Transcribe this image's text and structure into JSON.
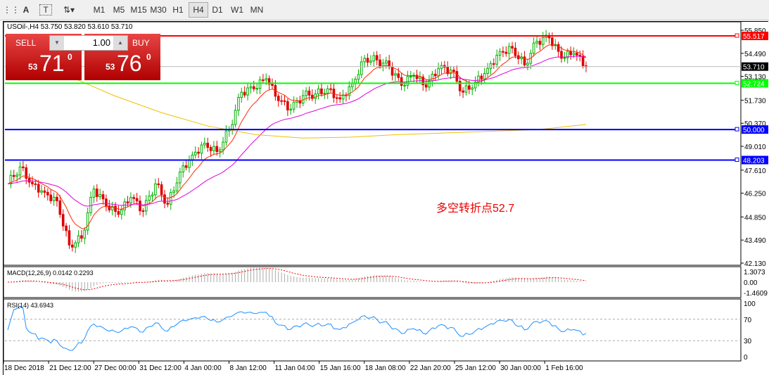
{
  "toolbar": {
    "timeframes": [
      "M1",
      "M5",
      "M15",
      "M30",
      "H1",
      "H4",
      "D1",
      "W1",
      "MN"
    ],
    "active": "H4",
    "icons": [
      "period-separator-icon",
      "text-icon",
      "text-label-icon",
      "arrows-icon"
    ]
  },
  "symbol_info": "USOil-,H4  53.750 53.820 53.610 53.710",
  "trade": {
    "sell": "SELL",
    "buy": "BUY",
    "volume": "1.00",
    "sell_big": "53",
    "sell_price": "71",
    "sell_sup": "0",
    "buy_big": "53",
    "buy_price": "76",
    "buy_sup": "0"
  },
  "annotation": "多空转折点52.7",
  "colors": {
    "up": "#00b000",
    "down": "#e00000",
    "ma_fast": "#ff2a00",
    "ma_mid": "#e000e0",
    "ma_slow": "#f0c000",
    "rsi": "#1e90ff"
  },
  "chart_data": {
    "type": "candlestick",
    "price_ticks": [
      "55.850",
      "54.490",
      "53.130",
      "51.730",
      "50.370",
      "49.010",
      "47.610",
      "46.250",
      "44.850",
      "43.490",
      "42.130"
    ],
    "ylim": [
      42.13,
      55.85
    ],
    "levels": [
      {
        "value": 55.517,
        "label": "55.517",
        "color": "#ff0000"
      },
      {
        "value": 52.724,
        "label": "52.724",
        "color": "#00ff00"
      },
      {
        "value": 50.0,
        "label": "50.000",
        "color": "#0000ff"
      },
      {
        "value": 48.203,
        "label": "48.203",
        "color": "#0000ff"
      }
    ],
    "current": {
      "value": 53.71,
      "label": "53.710"
    },
    "closes_approx": [
      46.8,
      47.8,
      46.8,
      46.3,
      45.8,
      43.2,
      43.6,
      46.5,
      45.5,
      45.0,
      46.0,
      45.2,
      46.8,
      45.6,
      47.5,
      48.5,
      49.2,
      48.7,
      50.0,
      52.2,
      52.4,
      53.0,
      51.7,
      51.2,
      52.0,
      52.1,
      52.4,
      51.8,
      52.7,
      54.2,
      54.1,
      53.7,
      52.6,
      53.2,
      52.5,
      53.6,
      53.5,
      52.2,
      52.8,
      53.6,
      54.6,
      54.8,
      53.8,
      55.2,
      55.4,
      54.2,
      54.5,
      53.7
    ],
    "ma_slow_approx": [
      53.2,
      52.0,
      51.0,
      50.2,
      49.7,
      49.5,
      49.55,
      49.7,
      49.8,
      49.9,
      50.0,
      50.3
    ],
    "time_labels": [
      "18 Dec 2018",
      "21 Dec 12:00",
      "27 Dec 00:00",
      "31 Dec 12:00",
      "4 Jan 00:00",
      "8 Jan 12:00",
      "11 Jan 04:00",
      "15 Jan 16:00",
      "18 Jan 08:00",
      "22 Jan 20:00",
      "25 Jan 12:00",
      "30 Jan 00:00",
      "1 Feb 16:00"
    ],
    "macd": {
      "label": "MACD(12,26,9) 0.0142 0.2293",
      "ticks": [
        "1.3073",
        "0.00",
        "-1.4609"
      ]
    },
    "rsi": {
      "label": "RSI(14) 43.6943",
      "ticks": [
        "100",
        "70",
        "30",
        "0"
      ],
      "value": 43.6943
    }
  }
}
